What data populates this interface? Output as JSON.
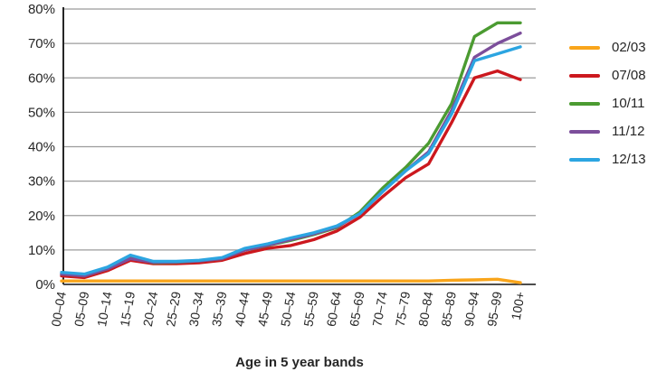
{
  "chart_data": {
    "type": "line",
    "title": "",
    "xlabel": "Age in 5 year bands",
    "ylabel": "",
    "ylim": [
      0,
      80
    ],
    "y_tick_step": 10,
    "y_tick_labels": [
      "0%",
      "10%",
      "20%",
      "30%",
      "40%",
      "50%",
      "60%",
      "70%",
      "80%"
    ],
    "grid": true,
    "legend_position": "right",
    "categories": [
      "00–04",
      "05–09",
      "10–14",
      "15–19",
      "20–24",
      "25–29",
      "30–34",
      "35–39",
      "40–44",
      "45–49",
      "50–54",
      "55–59",
      "60–64",
      "65–69",
      "70–74",
      "75–79",
      "80–84",
      "85–89",
      "90–94",
      "95–99",
      "100+"
    ],
    "series": [
      {
        "name": "02/03",
        "color": "#F9A51B",
        "values": [
          1,
          1,
          1,
          1,
          1,
          1,
          1,
          1,
          1,
          1,
          1,
          1,
          1,
          1,
          1,
          1,
          1,
          1.2,
          1.3,
          1.5,
          0.5
        ]
      },
      {
        "name": "07/08",
        "color": "#CC181E",
        "values": [
          2.5,
          2,
          4,
          7,
          6,
          6,
          6.3,
          7,
          9,
          10.5,
          11.3,
          13,
          15.5,
          19.5,
          25.5,
          31,
          35,
          47,
          60,
          62,
          59.5
        ]
      },
      {
        "name": "10/11",
        "color": "#4B9B31",
        "values": [
          3,
          2.5,
          4.5,
          7.8,
          6.3,
          6.4,
          6.8,
          7.5,
          10,
          11.3,
          12.8,
          14.5,
          16.5,
          21,
          28,
          34,
          41,
          52.5,
          72,
          76,
          76
        ]
      },
      {
        "name": "11/12",
        "color": "#7C4E9B",
        "values": [
          3,
          2.5,
          4.5,
          7.5,
          6.4,
          6.5,
          6.8,
          7.5,
          10,
          11.4,
          13,
          14.7,
          16.7,
          20.5,
          27,
          33,
          38.5,
          50.5,
          66,
          70,
          73
        ]
      },
      {
        "name": "12/13",
        "color": "#2CA5E1",
        "values": [
          3.5,
          3,
          5,
          8.5,
          6.7,
          6.7,
          7,
          7.8,
          10.5,
          11.8,
          13.5,
          15,
          17,
          20.5,
          27,
          33,
          38,
          49.5,
          65,
          67,
          69
        ]
      }
    ],
    "axis_color": "#262626",
    "grid_color": "#9b9b9b",
    "tick_label_color": "#262626"
  }
}
